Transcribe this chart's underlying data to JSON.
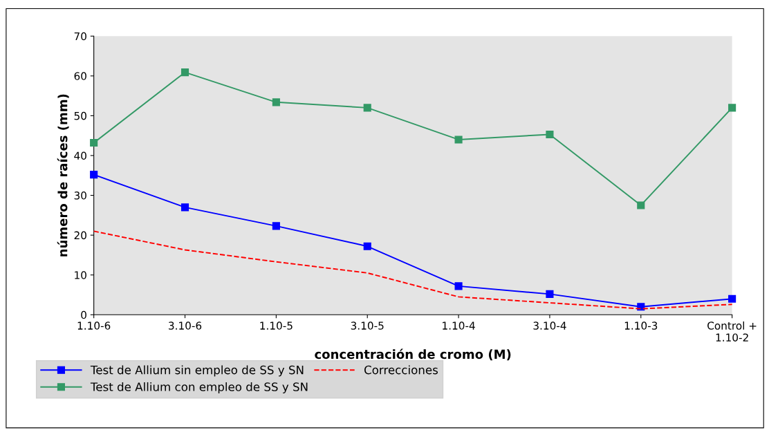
{
  "chart_data": {
    "type": "line",
    "xlabel": "concentración de cromo (M)",
    "ylabel": "número de raíces (mm)",
    "categories": [
      "1.10-6",
      "3.10-6",
      "1.10-5",
      "3.10-5",
      "1.10-4",
      "3.10-4",
      "1.10-3",
      "Control +\n1.10-2"
    ],
    "series": [
      {
        "name": "Test de Allium sin empleo de SS y SN",
        "color": "#0000ff",
        "marker": "square",
        "line_style": "solid",
        "values": [
          35.2,
          27,
          22.3,
          17.2,
          7.2,
          5.2,
          2,
          4
        ]
      },
      {
        "name": "Test de Allium con empleo de SS y SN",
        "color": "#339966",
        "marker": "square",
        "line_style": "solid",
        "values": [
          43.2,
          60.9,
          53.4,
          52,
          44,
          45.3,
          27.5,
          52
        ]
      },
      {
        "name": "Correcciones",
        "color": "#ff0000",
        "marker": "none",
        "line_style": "dashed",
        "values": [
          21,
          16.3,
          13.3,
          10.5,
          4.5,
          3,
          1.5,
          2.6
        ]
      }
    ],
    "ylim": [
      0,
      70
    ],
    "yticks": [
      0,
      10,
      20,
      30,
      40,
      50,
      60,
      70
    ],
    "grid": false,
    "legend": "bottom"
  }
}
